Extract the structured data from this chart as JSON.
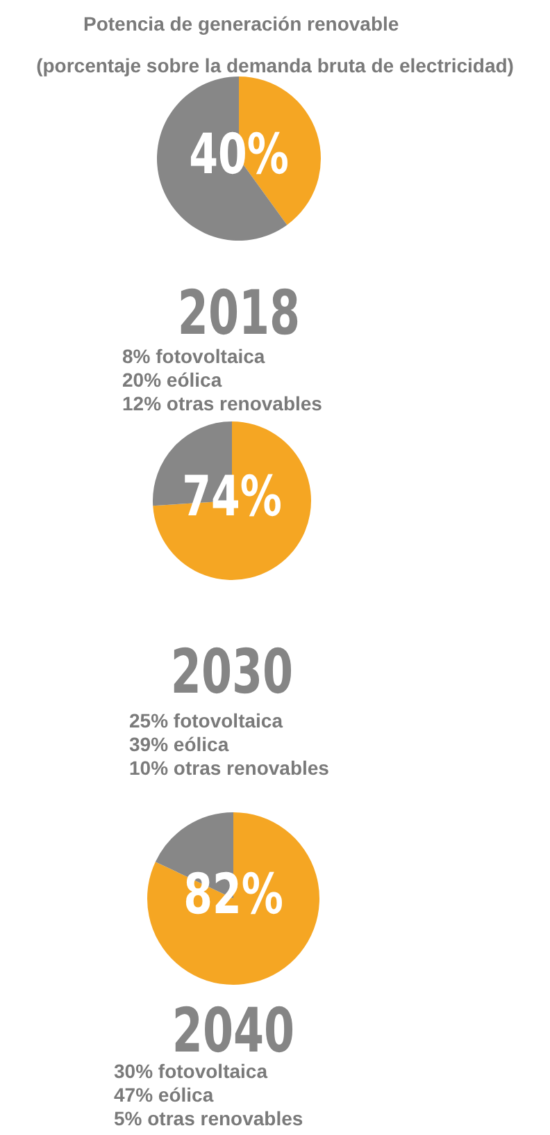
{
  "chart_data": [
    {
      "type": "pie",
      "title": "Potencia de generación renovable",
      "subtitle": "(porcentaje sobre la demanda bruta de electricidad)",
      "categories": [
        null,
        null
      ],
      "values": [
        40,
        60
      ],
      "colors": [
        "#f5a623",
        "#878787"
      ],
      "value_labels": [
        "40%",
        null
      ],
      "annotations": [
        "2018",
        "8% fotovoltaica",
        "20% eólica",
        "12% otras renovables"
      ]
    },
    {
      "type": "pie",
      "categories": [
        null,
        null
      ],
      "values": [
        74,
        26
      ],
      "colors": [
        "#f5a623",
        "#878787"
      ],
      "value_labels": [
        "74%",
        null
      ],
      "annotations": [
        "2030",
        "25% fotovoltaica",
        "39% eólica",
        "10% otras renovables"
      ]
    },
    {
      "type": "pie",
      "categories": [
        null,
        null
      ],
      "values": [
        82,
        18
      ],
      "colors": [
        "#f5a623",
        "#878787"
      ],
      "value_labels": [
        "82%",
        null
      ],
      "annotations": [
        "2040",
        "30% fotovoltaica",
        "47% eólica",
        "5% otras renovables"
      ]
    }
  ]
}
